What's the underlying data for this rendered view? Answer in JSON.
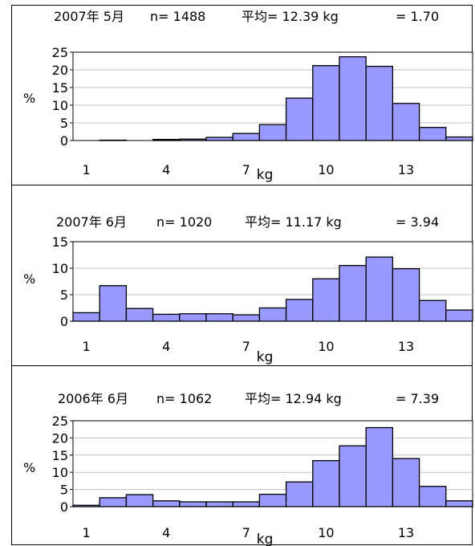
{
  "chart_data": [
    {
      "type": "bar",
      "header": {
        "period": "2007年 5月",
        "n": "n= 1488",
        "mean": "平均= 12.39 kg",
        "sd": "= 1.70"
      },
      "ylabel": "%",
      "xlabel": "kg",
      "ylim": [
        0,
        25
      ],
      "yticks": [
        "0",
        "5",
        "10",
        "15",
        "20",
        "25"
      ],
      "xticks": [
        {
          "label": "1",
          "bin": 0
        },
        {
          "label": "4",
          "bin": 3
        },
        {
          "label": "7",
          "bin": 6
        },
        {
          "label": "10",
          "bin": 9
        },
        {
          "label": "13",
          "bin": 12
        }
      ],
      "values": [
        0,
        0.1,
        0,
        0.3,
        0.4,
        0.9,
        2.0,
        4.5,
        12.0,
        21.2,
        23.7,
        21.0,
        10.5,
        3.7,
        1.0
      ],
      "grid": true
    },
    {
      "type": "bar",
      "header": {
        "period": "2007年 6月",
        "n": "n= 1020",
        "mean": "平均= 11.17 kg",
        "sd": "= 3.94"
      },
      "ylabel": "%",
      "xlabel": "kg",
      "ylim": [
        0,
        15
      ],
      "yticks": [
        "0",
        "5",
        "10",
        "15"
      ],
      "xticks": [
        {
          "label": "1",
          "bin": 0
        },
        {
          "label": "4",
          "bin": 3
        },
        {
          "label": "7",
          "bin": 6
        },
        {
          "label": "10",
          "bin": 9
        },
        {
          "label": "13",
          "bin": 12
        }
      ],
      "values": [
        1.6,
        6.7,
        2.4,
        1.3,
        1.4,
        1.4,
        1.2,
        2.5,
        4.1,
        8.0,
        10.5,
        12.1,
        9.9,
        3.9,
        2.1
      ],
      "grid": true
    },
    {
      "type": "bar",
      "header": {
        "period": "2006年 6月",
        "n": "n= 1062",
        "mean": "平均= 12.94 kg",
        "sd": "= 7.39"
      },
      "ylabel": "%",
      "xlabel": "kg",
      "ylim": [
        0,
        25
      ],
      "yticks": [
        "0",
        "5",
        "10",
        "15",
        "20",
        "25"
      ],
      "xticks": [
        {
          "label": "1",
          "bin": 0
        },
        {
          "label": "4",
          "bin": 3
        },
        {
          "label": "7",
          "bin": 6
        },
        {
          "label": "10",
          "bin": 9
        },
        {
          "label": "13",
          "bin": 12
        }
      ],
      "values": [
        0.4,
        2.6,
        3.5,
        1.7,
        1.4,
        1.4,
        1.4,
        3.6,
        7.2,
        13.4,
        17.7,
        23.0,
        14.0,
        5.9,
        1.7
      ],
      "grid": true
    }
  ],
  "colors": {
    "bar_fill": "#9999ff",
    "bar_stroke": "#000000",
    "grid": "#c0c0c0"
  }
}
